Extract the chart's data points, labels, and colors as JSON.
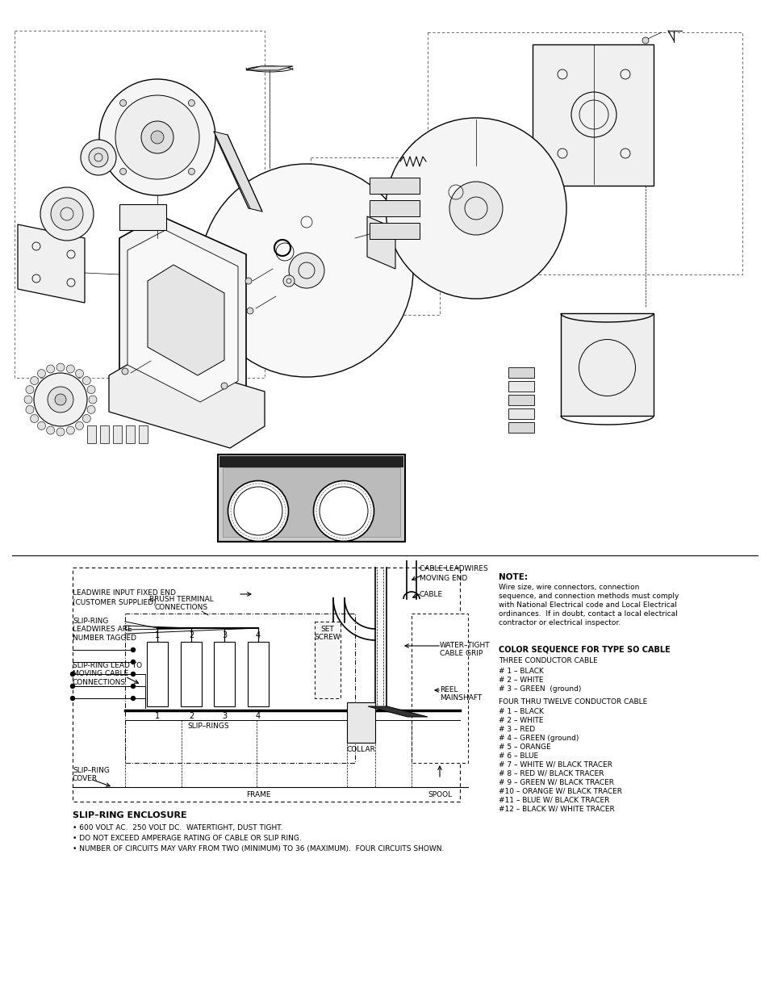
{
  "background_color": "#ffffff",
  "page_width": 9.54,
  "page_height": 12.35,
  "note_title": "NOTE:",
  "note_text": "Wire size, wire connectors, connection\nsequence, and connection methods must comply\nwith National Electrical code and Local Electrical\nordinances.  If in doubt, contact a local electrical\ncontractor or electrical inspector.",
  "color_seq_title": "COLOR SEQUENCE FOR TYPE SO CABLE",
  "three_cond_title": "THREE CONDUCTOR CABLE",
  "three_cond_list": [
    "# 1 – BLACK",
    "# 2 – WHITE",
    "# 3 – GREEN  (ground)"
  ],
  "four_twelve_title": "FOUR THRU TWELVE CONDUCTOR CABLE",
  "four_twelve_list": [
    "# 1 – BLACK",
    "# 2 – WHITE",
    "# 3 – RED",
    "# 4 – GREEN (ground)",
    "# 5 – ORANGE",
    "# 6 – BLUE",
    "# 7 – WHITE W/ BLACK TRACER",
    "# 8 – RED W/ BLACK TRACER",
    "# 9 – GREEN W/ BLACK TRACER",
    "#10 – ORANGE W/ BLACK TRACER",
    "#11 – BLUE W/ BLACK TRACER",
    "#12 – BLACK W/ WHITE TRACER"
  ],
  "slip_ring_title": "SLIP–RING ENCLOSURE",
  "slip_ring_bullets": [
    "• 600 VOLT AC.  250 VOLT DC.  WATERTIGHT, DUST TIGHT.",
    "• DO NOT EXCEED AMPERAGE RATING OF CABLE OR SLIP RING.",
    "• NUMBER OF CIRCUITS MAY VARY FROM TWO (MINIMUM) TO 36 (MAXIMUM).  FOUR CIRCUITS SHOWN."
  ]
}
